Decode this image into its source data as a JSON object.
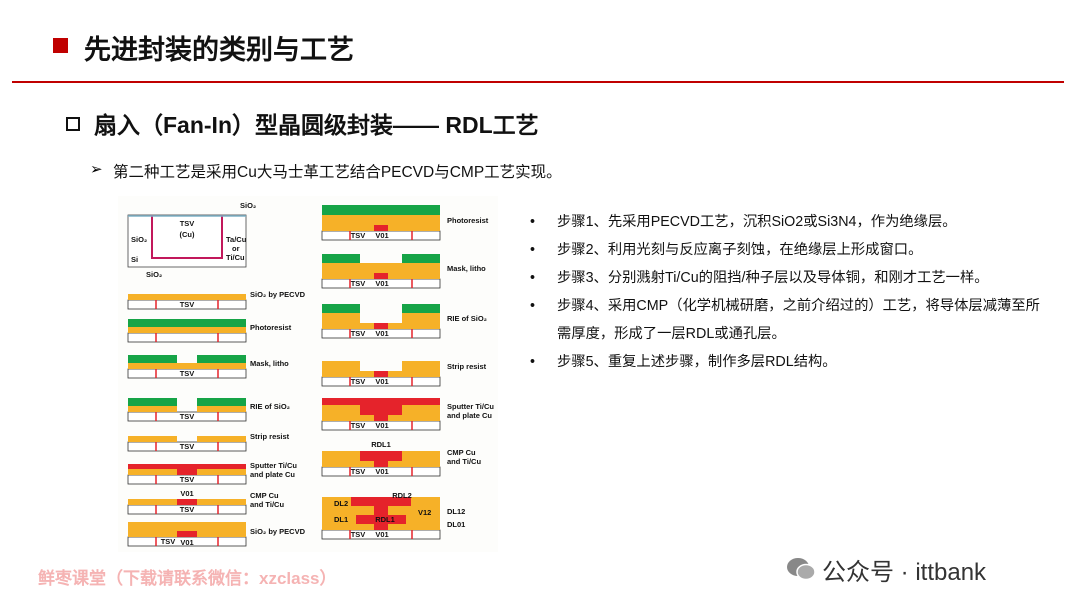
{
  "header": {
    "title": "先进封装的类别与工艺"
  },
  "section": {
    "title": "扇入（Fan-In）型晶圆级封装—— RDL工艺"
  },
  "intro": "第二种工艺是采用Cu大马士革工艺结合PECVD与CMP工艺实现。",
  "diagram": {
    "start": {
      "labels": [
        "SiO₂",
        "TSV",
        "(Cu)",
        "SiO₂",
        "Si",
        "Ta/Cu",
        "or",
        "Ti/Cu",
        "SiO₂"
      ]
    },
    "left_steps": [
      {
        "caption": [
          "SiO₂ by PECVD"
        ],
        "labels": [
          "TSV"
        ]
      },
      {
        "caption": [
          "Photoresist"
        ],
        "labels": []
      },
      {
        "caption": [
          "Mask, litho"
        ],
        "labels": [
          "TSV"
        ]
      },
      {
        "caption": [
          "RIE of SiO₂"
        ],
        "labels": [
          "TSV"
        ]
      },
      {
        "caption": [
          "Strip resist"
        ],
        "labels": [
          "TSV"
        ]
      },
      {
        "caption": [
          "Sputter Ti/Cu",
          "and plate Cu"
        ],
        "labels": [
          "TSV"
        ]
      },
      {
        "caption": [
          "CMP Cu",
          "and Ti/Cu"
        ],
        "labels": [
          "V01",
          "TSV"
        ]
      },
      {
        "caption": [
          "SiO₂ by PECVD"
        ],
        "labels": [
          "TSV",
          "V01"
        ]
      }
    ],
    "right_steps": [
      {
        "caption": [
          "Photoresist"
        ],
        "labels": [
          "TSV",
          "V01"
        ]
      },
      {
        "caption": [
          "Mask, litho"
        ],
        "labels": [
          "TSV",
          "V01"
        ]
      },
      {
        "caption": [
          "RIE of SiO₂"
        ],
        "labels": [
          "TSV",
          "V01"
        ]
      },
      {
        "caption": [
          "Strip resist"
        ],
        "labels": [
          "TSV",
          "V01"
        ]
      },
      {
        "caption": [
          "Sputter Ti/Cu",
          "and plate Cu"
        ],
        "labels": [
          "TSV",
          "V01"
        ]
      },
      {
        "caption": [
          "CMP Cu",
          "and Ti/Cu"
        ],
        "labels": [
          "TSV",
          "V01",
          "RDL1"
        ]
      }
    ],
    "final": {
      "labels": [
        "DL2",
        "RDL2",
        "V12",
        "DL12",
        "DL1",
        "RDL1",
        "DL01",
        "TSV",
        "V01"
      ]
    }
  },
  "steps": [
    "步骤1、先采用PECVD工艺，沉积SiO2或Si3N4，作为绝缘层。",
    "步骤2、利用光刻与反应离子刻蚀，在绝缘层上形成窗口。",
    "步骤3、分别溅射Ti/Cu的阻挡/种子层以及导体铜，和刚才工艺一样。",
    "步骤4、采用CMP（化学机械研磨，之前介绍过的）工艺，将导体层减薄至所需厚度，形成了一层RDL或通孔层。",
    "步骤5、重复上述步骤，制作多层RDL结构。"
  ],
  "footer": {
    "watermark": "鲜枣课堂（下载请联系微信：xzclass）",
    "account": "公众号 · ittbank"
  }
}
